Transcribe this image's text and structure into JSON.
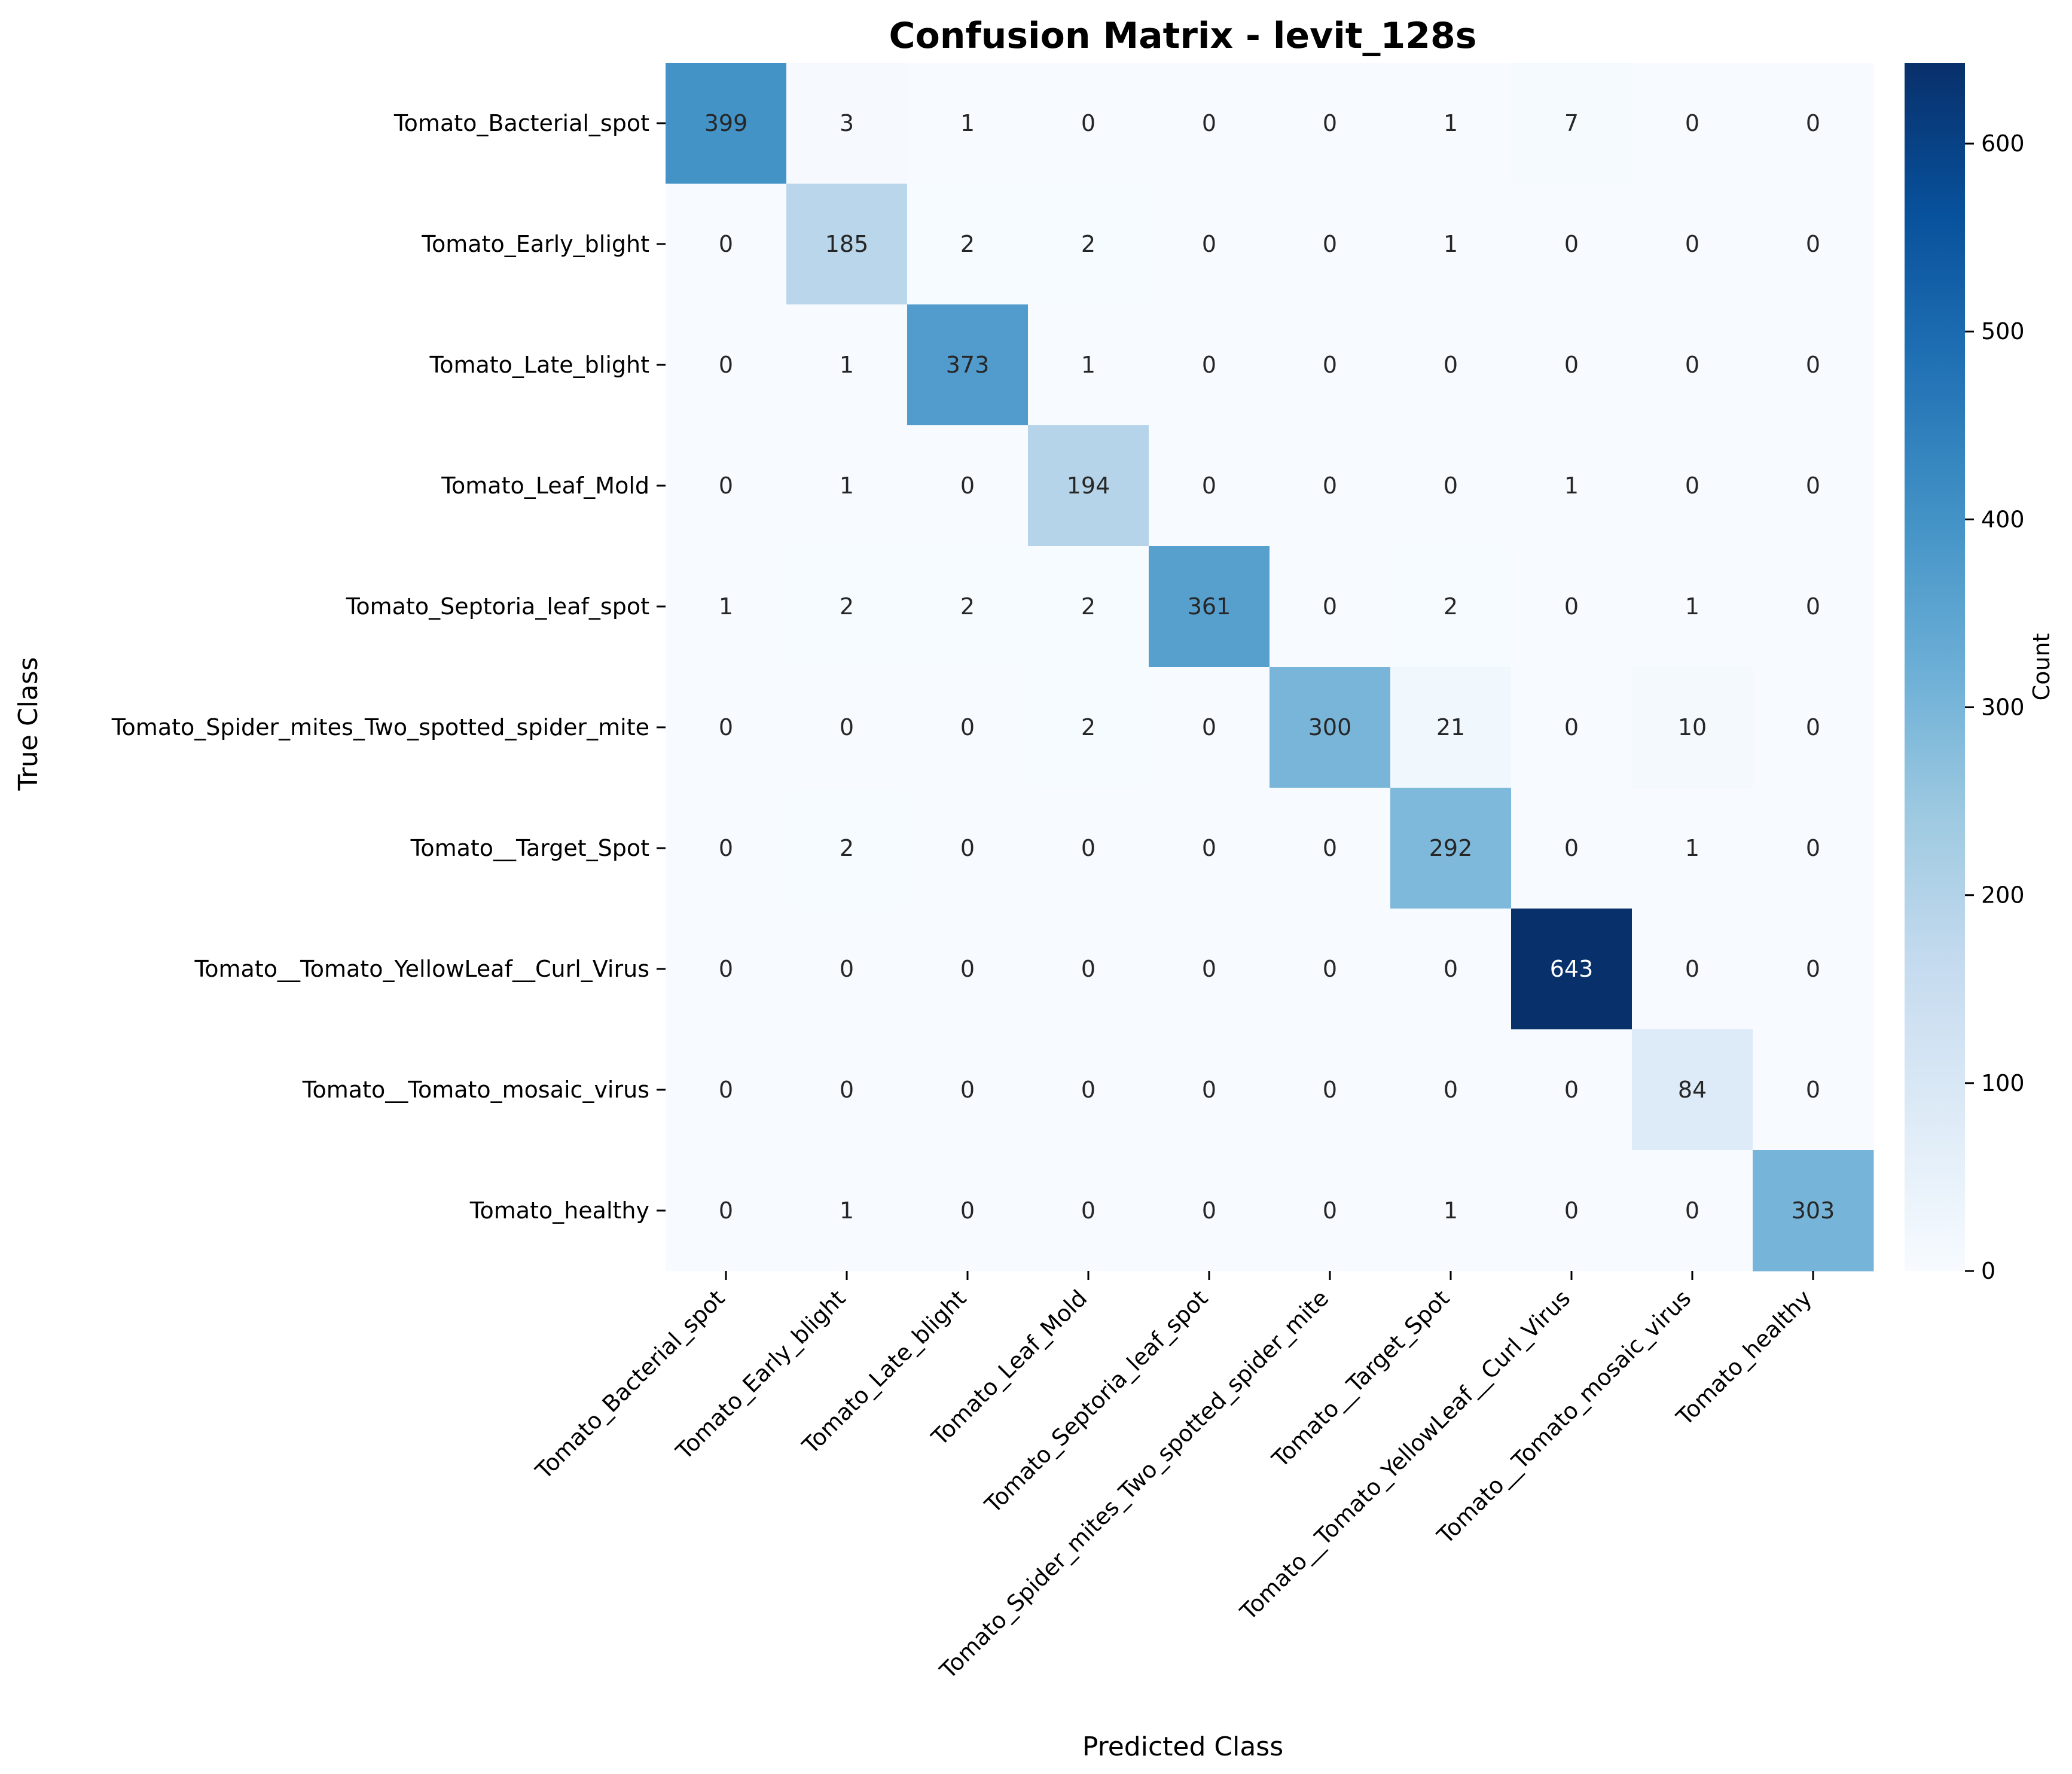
{
  "chart_data": {
    "type": "heatmap",
    "title": "Confusion Matrix - levit_128s",
    "xlabel": "Predicted Class",
    "ylabel": "True Class",
    "colorbar_label": "Count",
    "colormap": "Blues",
    "vmin": 0,
    "vmax": 643,
    "colorbar_ticks": [
      0,
      100,
      200,
      300,
      400,
      500,
      600
    ],
    "classes": [
      "Tomato_Bacterial_spot",
      "Tomato_Early_blight",
      "Tomato_Late_blight",
      "Tomato_Leaf_Mold",
      "Tomato_Septoria_leaf_spot",
      "Tomato_Spider_mites_Two_spotted_spider_mite",
      "Tomato__Target_Spot",
      "Tomato__Tomato_YellowLeaf__Curl_Virus",
      "Tomato__Tomato_mosaic_virus",
      "Tomato_healthy"
    ],
    "matrix": [
      [
        399,
        3,
        1,
        0,
        0,
        0,
        1,
        7,
        0,
        0
      ],
      [
        0,
        185,
        2,
        2,
        0,
        0,
        1,
        0,
        0,
        0
      ],
      [
        0,
        1,
        373,
        1,
        0,
        0,
        0,
        0,
        0,
        0
      ],
      [
        0,
        1,
        0,
        194,
        0,
        0,
        0,
        1,
        0,
        0
      ],
      [
        1,
        2,
        2,
        2,
        361,
        0,
        2,
        0,
        1,
        0
      ],
      [
        0,
        0,
        0,
        2,
        0,
        300,
        21,
        0,
        10,
        0
      ],
      [
        0,
        2,
        0,
        0,
        0,
        0,
        292,
        0,
        1,
        0
      ],
      [
        0,
        0,
        0,
        0,
        0,
        0,
        0,
        643,
        0,
        0
      ],
      [
        0,
        0,
        0,
        0,
        0,
        0,
        0,
        0,
        84,
        0
      ],
      [
        0,
        1,
        0,
        0,
        0,
        0,
        1,
        0,
        0,
        303
      ]
    ]
  }
}
